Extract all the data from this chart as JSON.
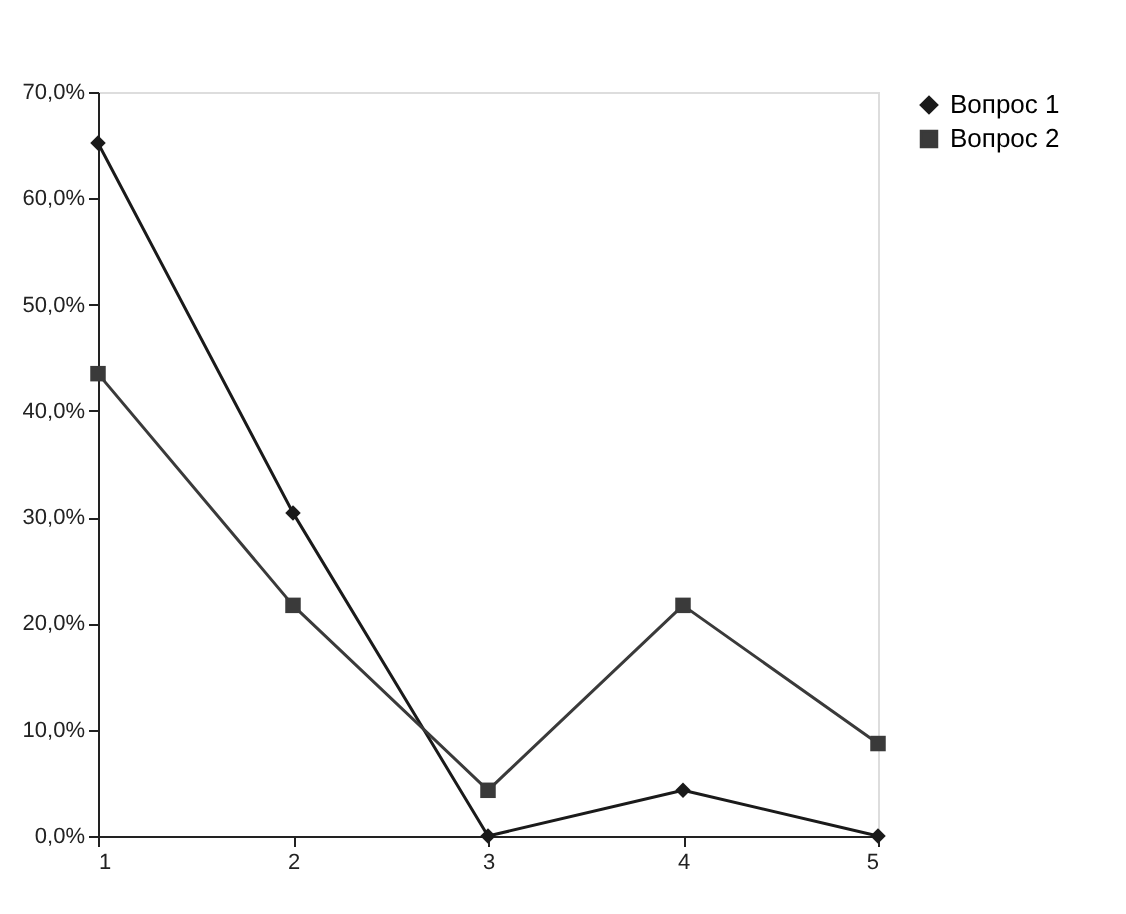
{
  "chart_data": {
    "type": "line",
    "categories": [
      "1",
      "2",
      "3",
      "4",
      "5"
    ],
    "series": [
      {
        "name": "Вопрос 1",
        "color": "#1a1a1a",
        "marker": "diamond",
        "values": [
          65.2,
          30.4,
          0,
          4.3,
          0
        ]
      },
      {
        "name": "Вопрос 2",
        "color": "#3a3a3a",
        "marker": "square",
        "values": [
          43.5,
          21.7,
          4.3,
          21.7,
          8.7
        ]
      }
    ],
    "ylim": [
      0,
      70
    ],
    "yticks": [
      {
        "value": 0,
        "label": "0,0%"
      },
      {
        "value": 10,
        "label": "10,0%"
      },
      {
        "value": 20,
        "label": "20,0%"
      },
      {
        "value": 30,
        "label": "30,0%"
      },
      {
        "value": 40,
        "label": "40,0%"
      },
      {
        "value": 50,
        "label": "50,0%"
      },
      {
        "value": 60,
        "label": "60,0%"
      },
      {
        "value": 70,
        "label": "70,0%"
      }
    ],
    "grid": false,
    "legend": "right",
    "line_style": "solid"
  }
}
